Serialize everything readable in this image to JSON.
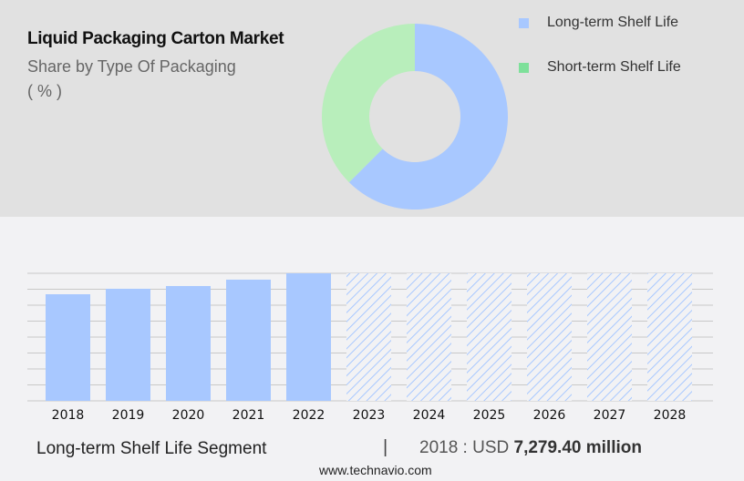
{
  "header": {
    "title": "Liquid Packaging Carton Market",
    "subtitle": "Share by Type Of Packaging",
    "unit": "( % )"
  },
  "colors": {
    "long_term": "#a8c8ff",
    "short_term": "#b8eebb",
    "short_term_legend": "#7ee09a",
    "grid": "#c8c8c8"
  },
  "chart_data": [
    {
      "type": "pie",
      "donut": true,
      "series": [
        {
          "name": "Long-term Shelf Life",
          "value": 62.5
        },
        {
          "name": "Short-term Shelf Life",
          "value": 37.5
        }
      ],
      "legend": "top-right"
    },
    {
      "type": "bar",
      "categories": [
        "2018",
        "2019",
        "2020",
        "2021",
        "2022",
        "2023",
        "2024",
        "2025",
        "2026",
        "2027",
        "2028"
      ],
      "values": [
        7279.4,
        7653,
        7840,
        8276,
        8710,
        null,
        null,
        null,
        null,
        null,
        null
      ],
      "forecast": [
        false,
        false,
        false,
        false,
        false,
        true,
        true,
        true,
        true,
        true,
        true
      ],
      "grid": true,
      "ylim": [
        0,
        8710
      ]
    }
  ],
  "footer": {
    "segment": "Long-term Shelf Life Segment",
    "separator": "|",
    "value_prefix": "2018 : USD",
    "value": "7,279.40 million",
    "site": "www.technavio.com"
  }
}
